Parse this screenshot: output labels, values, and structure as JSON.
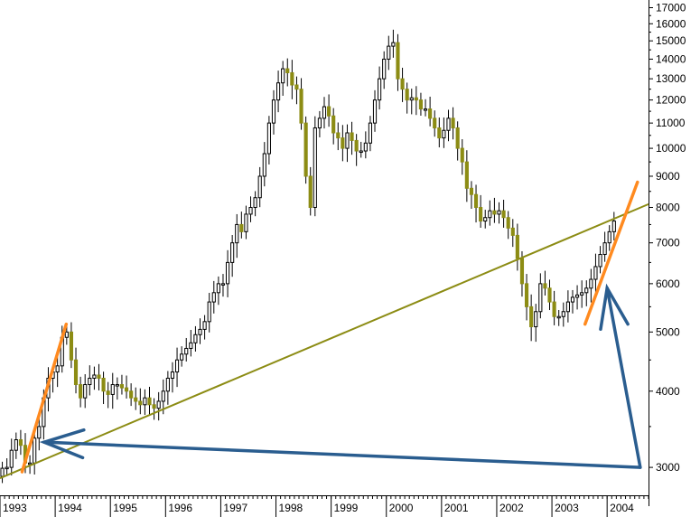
{
  "chart_data": {
    "type": "candlestick",
    "scale": "log",
    "ylim": [
      2700,
      17500
    ],
    "xlim": [
      1993.0,
      2004.75
    ],
    "y_ticks": [
      3000,
      4000,
      5000,
      6000,
      7000,
      8000,
      9000,
      10000,
      11000,
      12000,
      13000,
      14000,
      15000,
      16000,
      17000
    ],
    "y_tick_labels": [
      "3000",
      "4000",
      "5000",
      "6000",
      "7000",
      "8000",
      "9000",
      "10000",
      "11000",
      "12000",
      "13000",
      "14000",
      "15000",
      "16000",
      "17000"
    ],
    "x_ticks": [
      1993,
      1994,
      1995,
      1996,
      1997,
      1998,
      1999,
      2000,
      2001,
      2002,
      2003,
      2004
    ],
    "x_tick_labels": [
      "1993",
      "1994",
      "1995",
      "1996",
      "1997",
      "1998",
      "1999",
      "2000",
      "2001",
      "2002",
      "2003",
      "2004"
    ],
    "colors": {
      "up": "#ffffff",
      "down": "#8c8c14",
      "outline": "#000000",
      "trendline": "#8c8c14",
      "steep_lines": "#ff8a1f",
      "arrows": "#2a5d8f"
    },
    "monthly_close": [
      2990,
      3000,
      3200,
      3330,
      3260,
      3050,
      3050,
      3350,
      3500,
      3900,
      4200,
      4300,
      4400,
      4900,
      5000,
      4500,
      4100,
      3900,
      4100,
      4200,
      4250,
      4200,
      4000,
      3950,
      4100,
      4100,
      4050,
      4000,
      3900,
      3850,
      3800,
      3900,
      3800,
      3750,
      3850,
      4000,
      4200,
      4300,
      4500,
      4600,
      4700,
      4800,
      4950,
      5050,
      5200,
      5600,
      5800,
      6000,
      6000,
      6500,
      7000,
      7500,
      7300,
      7800,
      8000,
      8300,
      9000,
      9800,
      11000,
      12000,
      12800,
      13500,
      13300,
      12700,
      12500,
      11000,
      9000,
      8000,
      10800,
      11200,
      11700,
      11300,
      10600,
      10400,
      10000,
      10600,
      10300,
      9900,
      9900,
      10200,
      11000,
      12000,
      13000,
      14000,
      14700,
      14900,
      13000,
      12500,
      12000,
      12100,
      12000,
      11600,
      11600,
      11200,
      10800,
      10400,
      10700,
      11200,
      10800,
      10000,
      9500,
      8600,
      8400,
      8000,
      7600,
      7700,
      7900,
      7800,
      7900,
      7700,
      7400,
      7200,
      6600,
      6000,
      5500,
      5100,
      5400,
      6000,
      5900,
      5600,
      5300,
      5300,
      5400,
      5600,
      5700,
      5750,
      5800,
      5900,
      6100,
      6400,
      6700,
      7000,
      7300,
      7600
    ],
    "annotations": [
      {
        "type": "trendline",
        "x": [
          1993.0,
          2004.75
        ],
        "y": [
          2880,
          8100
        ]
      },
      {
        "type": "steep-line",
        "x": [
          1993.4,
          1994.2
        ],
        "y": [
          2950,
          5150
        ]
      },
      {
        "type": "steep-line",
        "x": [
          2003.6,
          2004.55
        ],
        "y": [
          5150,
          8800
        ]
      },
      {
        "type": "arrow",
        "x": [
          2004.6,
          1993.8
        ],
        "y": [
          3000,
          3300
        ]
      },
      {
        "type": "arrow",
        "x": [
          2004.6,
          2004.0
        ],
        "y": [
          3000,
          5900
        ]
      }
    ]
  }
}
